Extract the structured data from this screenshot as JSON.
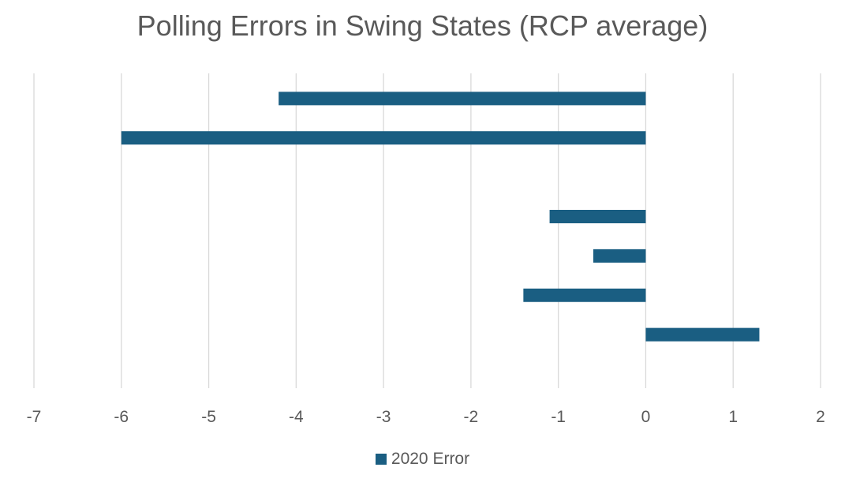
{
  "chart_data": {
    "type": "bar",
    "orientation": "horizontal",
    "title": "Polling Errors in Swing States (RCP average)",
    "xlabel": "",
    "ylabel": "",
    "xlim": [
      -7,
      2
    ],
    "x_ticks": [
      "-7",
      "-6",
      "-5",
      "-4",
      "-3",
      "-2",
      "-1",
      "0",
      "1",
      "2"
    ],
    "grid": "vertical",
    "legend_position": "bottom",
    "series": [
      {
        "name": "2020 Error",
        "color": "#1a5e82",
        "values": [
          -4.2,
          -6.0,
          null,
          -1.1,
          -0.6,
          -1.4,
          1.3
        ]
      }
    ]
  }
}
